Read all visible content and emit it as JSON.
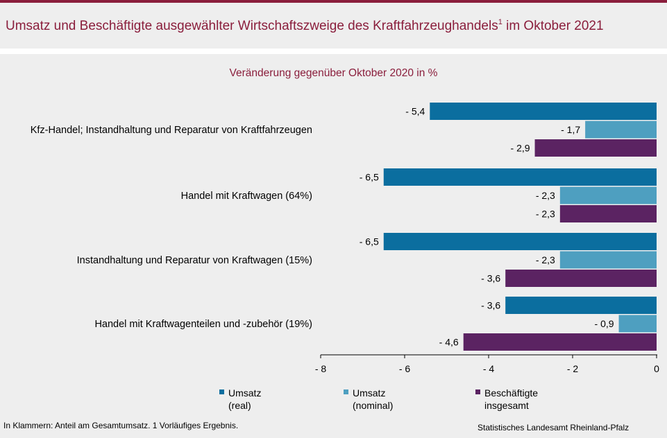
{
  "title": {
    "main": "Umsatz und Beschäftigte ausgewählter Wirtschaftszweige des Kraftfahrzeughandels",
    "sup": "1",
    "suffix": " im Oktober 2021"
  },
  "subtitle": "Veränderung gegenüber Oktober 2020 in %",
  "footnote": "In Klammern: Anteil am Gesamtumsatz. 1 Vorläufiges  Ergebnis.",
  "source": "Statistisches Landesamt Rheinland-Pfalz",
  "colors": {
    "real": "#0b6e9f",
    "nominal": "#4e9fc0",
    "employees": "#5b2362",
    "title": "#8a1e3c"
  },
  "chart_data": {
    "type": "bar",
    "orientation": "horizontal",
    "categories": [
      "Kfz-Handel; Instandhaltung und Reparatur von Kraftfahrzeugen",
      "Handel mit Kraftwagen (64%)",
      "Instandhaltung und Reparatur von Kraftwagen (15%)",
      "Handel mit Kraftwagenteilen und -zubehör (19%)"
    ],
    "series": [
      {
        "name": "Umsatz\n(real)",
        "values": [
          -5.4,
          -6.5,
          -6.5,
          -3.6
        ],
        "labels": [
          "- 5,4",
          "- 6,5",
          "- 6,5",
          "- 3,6"
        ]
      },
      {
        "name": "Umsatz\n(nominal)",
        "values": [
          -1.7,
          -2.3,
          -2.3,
          -0.9
        ],
        "labels": [
          "- 1,7",
          "- 2,3",
          "- 2,3",
          "- 0,9"
        ]
      },
      {
        "name": "Beschäftigte\ninsgesamt",
        "values": [
          -2.9,
          -2.3,
          -3.6,
          -4.6
        ],
        "labels": [
          "- 2,9",
          "- 2,3",
          "- 3,6",
          "- 4,6"
        ]
      }
    ],
    "xlim": [
      -8,
      0
    ],
    "xticks": [
      -8,
      -6,
      -4,
      -2,
      0
    ],
    "xtick_labels": [
      "- 8",
      "- 6",
      "- 4",
      "- 2",
      "0"
    ],
    "grid": false,
    "legend_position": "bottom"
  }
}
